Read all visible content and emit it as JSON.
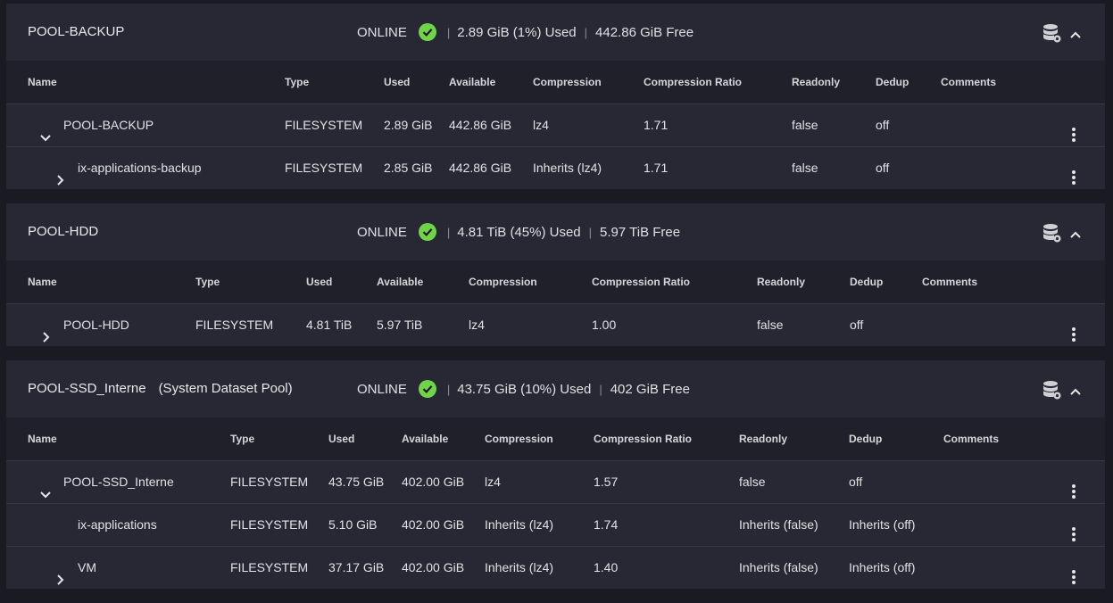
{
  "pools": [
    {
      "name": "POOL-BACKUP",
      "subtitle": "",
      "status": "ONLINE",
      "used": "2.89 GiB (1%) Used",
      "free": "442.86 GiB Free",
      "columns": [
        "Name",
        "Type",
        "Used",
        "Available",
        "Compression",
        "Compression Ratio",
        "Readonly",
        "Dedup",
        "Comments"
      ],
      "rows": [
        {
          "name": "POOL-BACKUP",
          "type": "FILESYSTEM",
          "used": "2.89 GiB",
          "available": "442.86 GiB",
          "compression": "lz4",
          "ratio": "1.71",
          "readonly": "false",
          "dedup": "off",
          "comments": "",
          "expand": "down",
          "indent": 0
        },
        {
          "name": "ix-applications-backup",
          "type": "FILESYSTEM",
          "used": "2.85 GiB",
          "available": "442.86 GiB",
          "compression": "Inherits (lz4)",
          "ratio": "1.71",
          "readonly": "false",
          "dedup": "off",
          "comments": "",
          "expand": "right",
          "indent": 1
        }
      ]
    },
    {
      "name": "POOL-HDD",
      "subtitle": "",
      "status": "ONLINE",
      "used": "4.81 TiB (45%) Used",
      "free": "5.97 TiB Free",
      "columns": [
        "Name",
        "Type",
        "Used",
        "Available",
        "Compression",
        "Compression Ratio",
        "Readonly",
        "Dedup",
        "Comments"
      ],
      "rows": [
        {
          "name": "POOL-HDD",
          "type": "FILESYSTEM",
          "used": "4.81 TiB",
          "available": "5.97 TiB",
          "compression": "lz4",
          "ratio": "1.00",
          "readonly": "false",
          "dedup": "off",
          "comments": "",
          "expand": "right",
          "indent": 0
        }
      ]
    },
    {
      "name": "POOL-SSD_Interne",
      "subtitle": "(System Dataset Pool)",
      "status": "ONLINE",
      "used": "43.75 GiB (10%) Used",
      "free": "402 GiB Free",
      "columns": [
        "Name",
        "Type",
        "Used",
        "Available",
        "Compression",
        "Compression Ratio",
        "Readonly",
        "Dedup",
        "Comments"
      ],
      "rows": [
        {
          "name": "POOL-SSD_Interne",
          "type": "FILESYSTEM",
          "used": "43.75 GiB",
          "available": "402.00 GiB",
          "compression": "lz4",
          "ratio": "1.57",
          "readonly": "false",
          "dedup": "off",
          "comments": "",
          "expand": "down",
          "indent": 0
        },
        {
          "name": "ix-applications",
          "type": "FILESYSTEM",
          "used": "5.10 GiB",
          "available": "402.00 GiB",
          "compression": "Inherits (lz4)",
          "ratio": "1.74",
          "readonly": "Inherits (false)",
          "dedup": "Inherits (off)",
          "comments": "",
          "expand": "none",
          "indent": 1
        },
        {
          "name": "VM",
          "type": "FILESYSTEM",
          "used": "37.17 GiB",
          "available": "402.00 GiB",
          "compression": "Inherits (lz4)",
          "ratio": "1.40",
          "readonly": "Inherits (false)",
          "dedup": "Inherits (off)",
          "comments": "",
          "expand": "right",
          "indent": 1
        }
      ]
    }
  ],
  "colors": {
    "accent_green": "#71d34a",
    "panel": "#272833",
    "header_row": "#1f2029",
    "background": "#1a1b22"
  },
  "icons": {
    "status": "check-circle-icon",
    "pool_options": "database-gear-icon",
    "collapse": "chevron-up-icon",
    "row_menu": "more-vert-icon"
  }
}
